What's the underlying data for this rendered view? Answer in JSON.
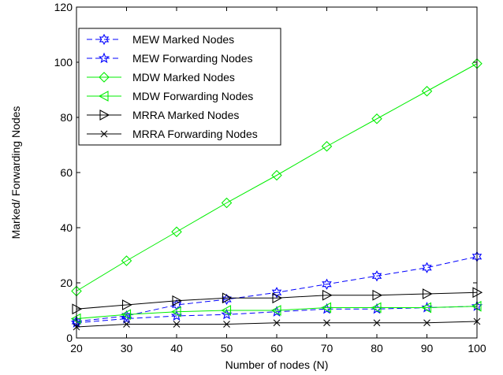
{
  "chart_data": {
    "type": "line",
    "title": "",
    "xlabel": "Number of nodes (N)",
    "ylabel": "Marked/ Forwarding Nodes",
    "xlim": [
      20,
      100
    ],
    "ylim": [
      0,
      120
    ],
    "xticks": [
      20,
      30,
      40,
      50,
      60,
      70,
      80,
      90,
      100
    ],
    "yticks": [
      0,
      20,
      40,
      60,
      80,
      100,
      120
    ],
    "grid": false,
    "legend_position": "top-left",
    "x": [
      20,
      30,
      40,
      50,
      60,
      70,
      80,
      90,
      100
    ],
    "series": [
      {
        "name": "MEW Marked Nodes",
        "values": [
          6,
          8,
          12,
          14,
          16.5,
          19.5,
          22.5,
          25.5,
          29.5
        ],
        "color": "#0000ff",
        "dash": "dashed",
        "marker": "hexagram"
      },
      {
        "name": "MEW Forwarding Nodes",
        "values": [
          5.5,
          7,
          8,
          8.5,
          9.5,
          10.5,
          10.5,
          11,
          11.5
        ],
        "color": "#0000ff",
        "dash": "dashed",
        "marker": "pentagram"
      },
      {
        "name": "MDW Marked Nodes",
        "values": [
          17,
          28,
          38.5,
          49,
          59,
          69.5,
          79.5,
          89.5,
          99.5
        ],
        "color": "#00ee00",
        "dash": "solid",
        "marker": "diamond"
      },
      {
        "name": "MDW Forwarding Nodes",
        "values": [
          7,
          8.5,
          9.5,
          10,
          10,
          11,
          11,
          11,
          11.5
        ],
        "color": "#00ee00",
        "dash": "solid",
        "marker": "triangle-left"
      },
      {
        "name": "MRRA Marked Nodes",
        "values": [
          10.5,
          12,
          13.5,
          14.5,
          14.5,
          15.5,
          15.5,
          16,
          16.5
        ],
        "color": "#000000",
        "dash": "solid",
        "marker": "triangle-right"
      },
      {
        "name": "MRRA Forwarding Nodes",
        "values": [
          4,
          5,
          5,
          5,
          5.5,
          5.5,
          5.5,
          5.5,
          6
        ],
        "color": "#000000",
        "dash": "solid",
        "marker": "x"
      }
    ]
  }
}
